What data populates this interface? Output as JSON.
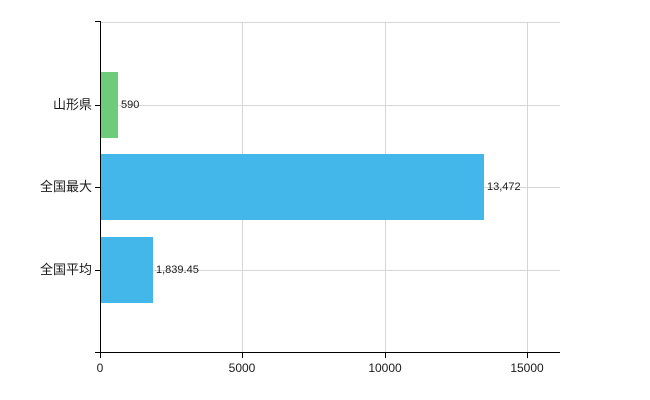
{
  "chart_data": {
    "type": "bar",
    "orientation": "horizontal",
    "title": "",
    "categories": [
      "山形県",
      "全国最大",
      "全国平均"
    ],
    "values": [
      590,
      13472,
      1839.45
    ],
    "value_labels": [
      "590",
      "13,472",
      "1,839.45"
    ],
    "bar_colors": [
      "#6ecb79",
      "#44b7ea",
      "#44b7ea"
    ],
    "xlabel": "",
    "ylabel": "",
    "xlim": [
      0,
      16166
    ],
    "x_ticks": [
      0,
      5000,
      10000,
      15000
    ],
    "x_tick_labels": [
      "0",
      "5000",
      "10000",
      "15000"
    ],
    "grid": true,
    "legend": false
  },
  "colors": {
    "background": "#ffffff",
    "axis": "#000000",
    "gridline": "#d6d6d6",
    "text": "#1a1a1a",
    "bar_green": "#6ecb79",
    "bar_blue": "#44b7ea"
  }
}
